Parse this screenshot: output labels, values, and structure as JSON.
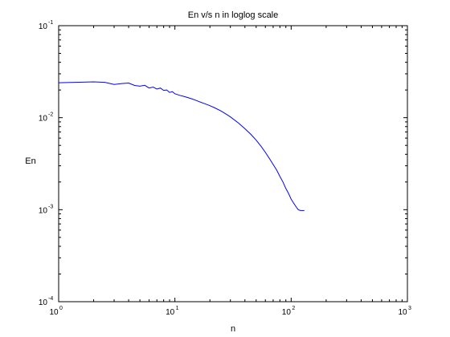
{
  "chart_data": {
    "type": "line",
    "title": "En v/s n in loglog scale",
    "xlabel": "n",
    "ylabel": "En",
    "x_scale": "log",
    "y_scale": "log",
    "xlim": [
      1,
      1000
    ],
    "ylim": [
      0.0001,
      0.1
    ],
    "x_ticks": [
      {
        "base": "10",
        "exp": "0"
      },
      {
        "base": "10",
        "exp": "1"
      },
      {
        "base": "10",
        "exp": "2"
      },
      {
        "base": "10",
        "exp": "3"
      }
    ],
    "y_ticks": [
      {
        "base": "10",
        "exp": "-4"
      },
      {
        "base": "10",
        "exp": "-3"
      },
      {
        "base": "10",
        "exp": "-2"
      },
      {
        "base": "10",
        "exp": "-1"
      }
    ],
    "grid": false,
    "line_color": "#0000ff",
    "series": [
      {
        "x": [
          1,
          1.5,
          2,
          2.5,
          3,
          3.5,
          4,
          4.5,
          5,
          5.5,
          6,
          6.5,
          7,
          7.5,
          8,
          8.5,
          9,
          9.5,
          10,
          11,
          12,
          13,
          14,
          15,
          16,
          18,
          20,
          22,
          25,
          28,
          30,
          35,
          40,
          45,
          50,
          55,
          60,
          65,
          70,
          75,
          80,
          85,
          90,
          95,
          100,
          105,
          110,
          115,
          120,
          125,
          130
        ],
        "y": [
          0.024,
          0.0243,
          0.0245,
          0.0242,
          0.023,
          0.0235,
          0.0238,
          0.0224,
          0.022,
          0.0225,
          0.021,
          0.0215,
          0.0205,
          0.021,
          0.0198,
          0.02,
          0.0188,
          0.0192,
          0.0182,
          0.0175,
          0.017,
          0.0165,
          0.016,
          0.0155,
          0.015,
          0.0142,
          0.0135,
          0.0128,
          0.0118,
          0.0108,
          0.0102,
          0.0088,
          0.0076,
          0.0066,
          0.0057,
          0.0049,
          0.0042,
          0.0036,
          0.0031,
          0.0027,
          0.0023,
          0.002,
          0.0017,
          0.0015,
          0.0013,
          0.00118,
          0.00108,
          0.001,
          0.00098,
          0.00098,
          0.00098
        ]
      }
    ]
  }
}
